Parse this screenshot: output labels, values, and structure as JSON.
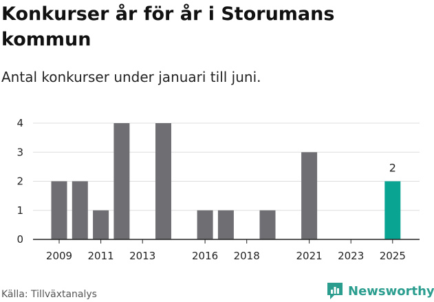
{
  "title": "Konkurser år för år i Storumans kommun",
  "subtitle": "Antal konkurser under januari till juni.",
  "source": "Källa: Tillväxtanalys",
  "brand": {
    "name": "Newsworthy",
    "color": "#2a9d8f",
    "icon": "newsworthy-logo-icon"
  },
  "colors": {
    "bar": "#6f6e72",
    "highlight": "#0aa493",
    "grid": "#dddddd",
    "axis": "#222222"
  },
  "chart_data": {
    "type": "bar",
    "categories": [
      "2009",
      "2010",
      "2011",
      "2012",
      "2013",
      "2014",
      "2015",
      "2016",
      "2017",
      "2018",
      "2019",
      "2020",
      "2021",
      "2022",
      "2023",
      "2024",
      "2025"
    ],
    "values": [
      2,
      2,
      1,
      4,
      0,
      4,
      0,
      1,
      1,
      0,
      1,
      0,
      3,
      0,
      0,
      0,
      2
    ],
    "highlight_category": "2025",
    "data_labels": [
      {
        "category": "2025",
        "text": "2"
      }
    ],
    "x_tick_labels": [
      "2009",
      "2011",
      "2013",
      "2016",
      "2018",
      "2021",
      "2023",
      "2025"
    ],
    "y_ticks": [
      0,
      1,
      2,
      3,
      4
    ],
    "ylim": [
      0,
      4
    ],
    "grid": true,
    "xlabel": "",
    "ylabel": ""
  }
}
